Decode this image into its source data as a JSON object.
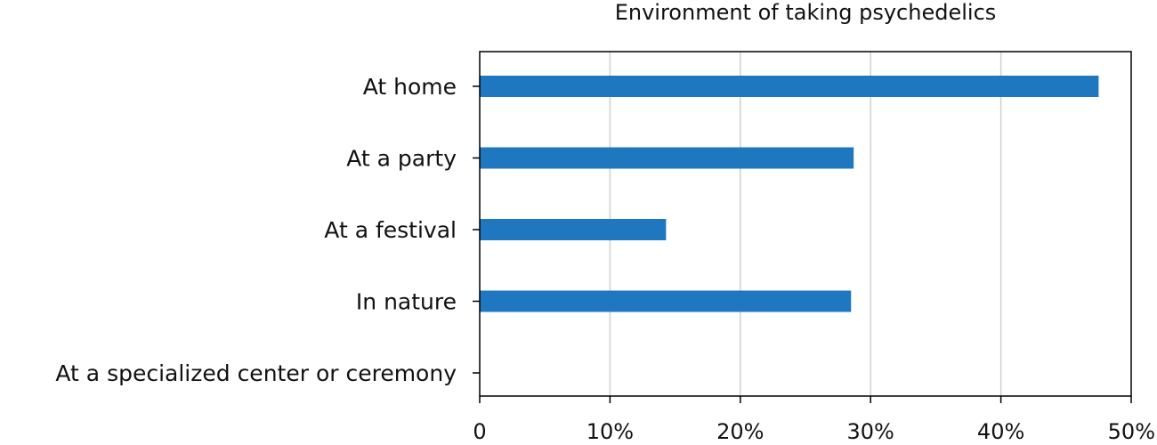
{
  "chart_data": {
    "type": "bar",
    "orientation": "horizontal",
    "title": "Environment of taking psychedelics",
    "categories": [
      "At home",
      "At a party",
      "At a festival",
      "In nature",
      "At a specialized center or ceremony"
    ],
    "values": [
      47.5,
      28.7,
      14.3,
      28.5,
      0
    ],
    "xlim": [
      0,
      50
    ],
    "xticks": [
      0,
      10,
      20,
      30,
      40,
      50
    ],
    "xtick_labels": [
      "0",
      "10%",
      "20%",
      "30%",
      "40%",
      "50%"
    ],
    "xlabel": "",
    "ylabel": "",
    "grid": "vertical",
    "bar_color": "#1f77c0"
  }
}
